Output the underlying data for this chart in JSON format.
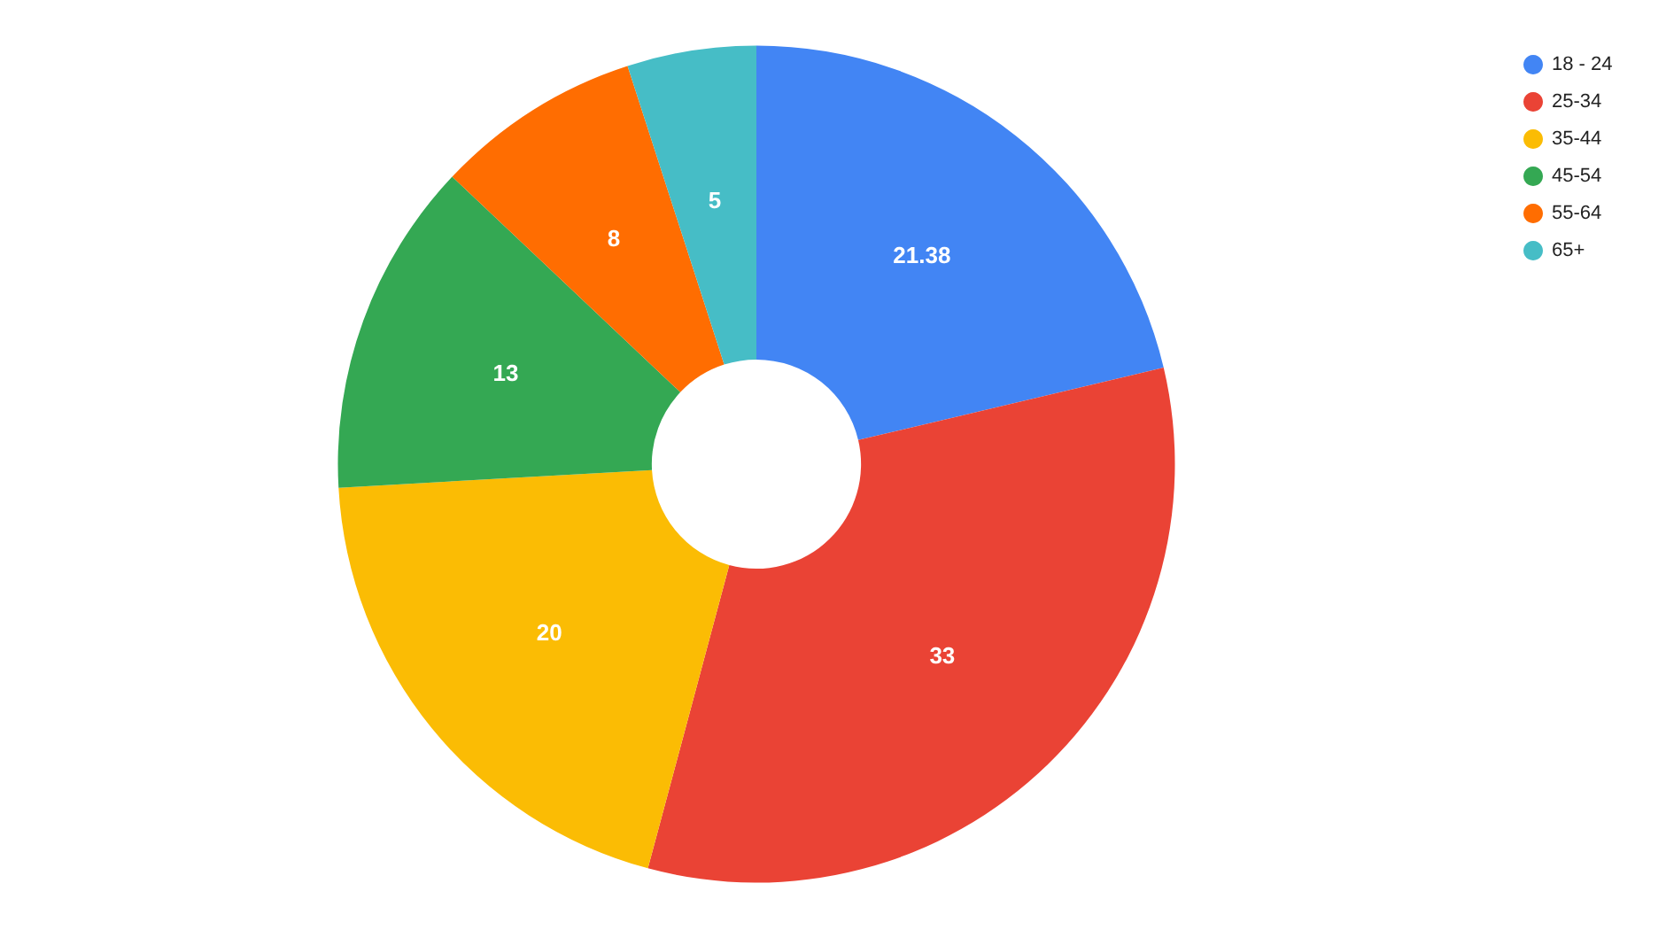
{
  "chart_data": {
    "type": "donut",
    "categories": [
      "18 - 24",
      "25-34",
      "35-44",
      "45-54",
      "55-64",
      "65+"
    ],
    "values": [
      21.38,
      33,
      20,
      13,
      8,
      5
    ],
    "colors": [
      "#4285f4",
      "#ea4335",
      "#fbbc04",
      "#34a853",
      "#ff6d01",
      "#46bdc6"
    ],
    "data_labels": true,
    "legend": "top right"
  }
}
